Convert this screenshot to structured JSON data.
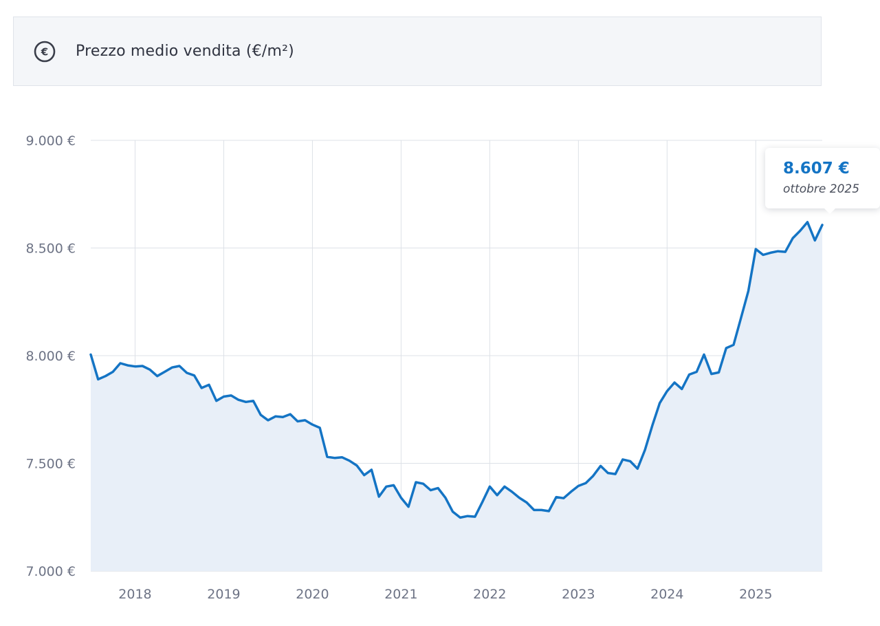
{
  "header": {
    "icon": "euro-circle-icon",
    "title": "Prezzo medio vendita (€/m²)"
  },
  "tooltip": {
    "value": "8.607 €",
    "date": "ottobre 2025"
  },
  "colors": {
    "line": "#1474c4",
    "area": "#e8eff8",
    "tooltip_value": "#1474c4"
  },
  "chart_data": {
    "type": "area",
    "title": "Prezzo medio vendita (€/m²)",
    "xlabel": "",
    "ylabel": "",
    "x_tick_labels": [
      "2018",
      "2019",
      "2020",
      "2021",
      "2022",
      "2023",
      "2024",
      "2025"
    ],
    "y_tick_labels": [
      "9.000 €",
      "8.500 €",
      "8.000 €",
      "7.500 €",
      "7.000 €"
    ],
    "ylim": [
      7000,
      9000
    ],
    "y_ticks": [
      9000,
      8500,
      8000,
      7500,
      7000
    ],
    "grid": true,
    "x_start": "2017-07",
    "x_end": "2025-10",
    "series": [
      {
        "x": [
          "2017-07",
          "2017-08",
          "2017-09",
          "2017-10",
          "2017-11",
          "2017-12",
          "2018-01",
          "2018-02",
          "2018-03",
          "2018-04",
          "2018-05",
          "2018-06",
          "2018-07",
          "2018-08",
          "2018-09",
          "2018-10",
          "2018-11",
          "2018-12",
          "2019-01",
          "2019-02",
          "2019-03",
          "2019-04",
          "2019-05",
          "2019-06",
          "2019-07",
          "2019-08",
          "2019-09",
          "2019-10",
          "2019-11",
          "2019-12",
          "2020-01",
          "2020-02",
          "2020-03",
          "2020-04",
          "2020-05",
          "2020-06",
          "2020-07",
          "2020-08",
          "2020-09",
          "2020-10",
          "2020-11",
          "2020-12",
          "2021-01",
          "2021-02",
          "2021-03",
          "2021-04",
          "2021-05",
          "2021-06",
          "2021-07",
          "2021-08",
          "2021-09",
          "2021-10",
          "2021-11",
          "2021-12",
          "2022-01",
          "2022-02",
          "2022-03",
          "2022-04",
          "2022-05",
          "2022-06",
          "2022-07",
          "2022-08",
          "2022-09",
          "2022-10",
          "2022-11",
          "2022-12",
          "2023-01",
          "2023-02",
          "2023-03",
          "2023-04",
          "2023-05",
          "2023-06",
          "2023-07",
          "2023-08",
          "2023-09",
          "2023-10",
          "2023-11",
          "2023-12",
          "2024-01",
          "2024-02",
          "2024-03",
          "2024-04",
          "2024-05",
          "2024-06",
          "2024-07",
          "2024-08",
          "2024-09",
          "2024-10",
          "2024-11",
          "2024-12",
          "2025-01",
          "2025-02",
          "2025-03",
          "2025-04",
          "2025-05",
          "2025-06",
          "2025-07",
          "2025-08",
          "2025-09",
          "2025-10"
        ],
        "values": [
          8005,
          7890,
          7905,
          7925,
          7965,
          7955,
          7950,
          7952,
          7935,
          7905,
          7925,
          7945,
          7952,
          7920,
          7908,
          7850,
          7865,
          7790,
          7810,
          7815,
          7795,
          7785,
          7790,
          7725,
          7700,
          7718,
          7715,
          7728,
          7695,
          7700,
          7680,
          7665,
          7530,
          7525,
          7528,
          7512,
          7490,
          7445,
          7470,
          7345,
          7392,
          7398,
          7340,
          7298,
          7412,
          7405,
          7375,
          7385,
          7340,
          7275,
          7248,
          7255,
          7252,
          7320,
          7392,
          7352,
          7392,
          7368,
          7340,
          7318,
          7283,
          7283,
          7278,
          7343,
          7338,
          7368,
          7395,
          7408,
          7442,
          7488,
          7455,
          7450,
          7518,
          7510,
          7475,
          7562,
          7675,
          7780,
          7835,
          7875,
          7845,
          7912,
          7925,
          8005,
          7915,
          7922,
          8035,
          8050,
          8175,
          8300,
          8495,
          8468,
          8478,
          8485,
          8482,
          8545,
          8580,
          8620,
          8535,
          8607
        ]
      }
    ]
  }
}
